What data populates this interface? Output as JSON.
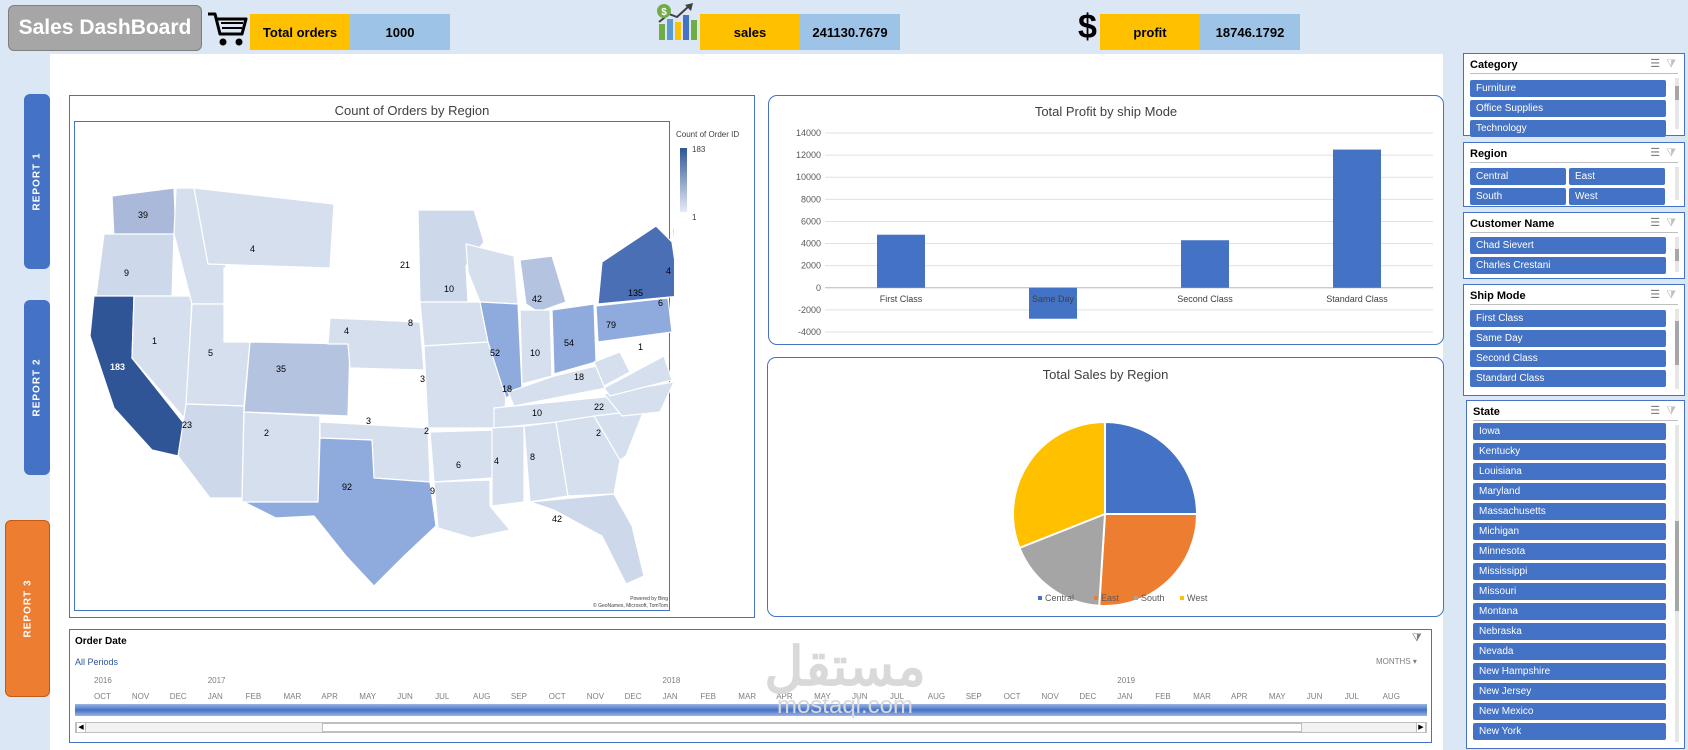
{
  "header": {
    "title": "Sales DashBoard",
    "kpis": [
      {
        "label": "Total  orders",
        "value": "1000",
        "icon": "cart-icon"
      },
      {
        "label": "sales",
        "value": "241130.7679",
        "icon": "sales-growth-icon"
      },
      {
        "label": "profit",
        "value": "18746.1792",
        "icon": "dollar-icon"
      }
    ]
  },
  "nav": [
    {
      "label": "REPORT 1",
      "color": "#4472c4"
    },
    {
      "label": "REPORT 2",
      "color": "#4472c4"
    },
    {
      "label": "REPORT 3",
      "color": "#ed7d31"
    }
  ],
  "map": {
    "title": "Count of Orders by Region",
    "legend_title": "Count of Order ID",
    "legend_max": "183",
    "legend_min": "1",
    "attribution_1": "Powered by Bing",
    "attribution_2": "© GeoNames, Microsoft, TomTom",
    "state_labels": [
      "39",
      "4",
      "9",
      "21",
      "10",
      "4",
      "135",
      "6",
      "42",
      "4",
      "79",
      "1",
      "8",
      "52",
      "10",
      "54",
      "1",
      "5",
      "35",
      "183",
      "3",
      "18",
      "18",
      "10",
      "22",
      "3",
      "2",
      "2",
      "23",
      "2",
      "92",
      "6",
      "4",
      "8",
      "9",
      "42"
    ]
  },
  "chart_data": [
    {
      "type": "bar",
      "title": "Total Profit by ship Mode",
      "categories": [
        "First Class",
        "Same Day",
        "Second Class",
        "Standard Class"
      ],
      "values": [
        4800,
        -2800,
        4300,
        12500
      ],
      "ylim": [
        -4000,
        14000
      ],
      "yticks": [
        "14000",
        "12000",
        "10000",
        "8000",
        "6000",
        "4000",
        "2000",
        "0",
        "-2000",
        "-4000"
      ],
      "color": "#4472c4",
      "grid": true,
      "legend": "none"
    },
    {
      "type": "pie",
      "title": "Total Sales by Region",
      "categories": [
        "Central",
        "East",
        "South",
        "West"
      ],
      "values": [
        25,
        26,
        18,
        31
      ],
      "colors": [
        "#4472c4",
        "#ed7d31",
        "#a5a5a5",
        "#ffc000"
      ],
      "legend": "bottom"
    }
  ],
  "slicers": {
    "category": {
      "title": "Category",
      "items": [
        "Furniture",
        "Office Supplies",
        "Technology"
      ]
    },
    "region": {
      "title": "Region",
      "items": [
        "Central",
        "East",
        "South",
        "West"
      ]
    },
    "customer": {
      "title": "Customer Name",
      "items": [
        "Chad Sievert",
        "Charles Crestani"
      ]
    },
    "shipmode": {
      "title": "Ship Mode",
      "items": [
        "First Class",
        "Same Day",
        "Second Class",
        "Standard Class"
      ]
    },
    "state": {
      "title": "State",
      "items": [
        "Iowa",
        "Kentucky",
        "Louisiana",
        "Maryland",
        "Massachusetts",
        "Michigan",
        "Minnesota",
        "Mississippi",
        "Missouri",
        "Montana",
        "Nebraska",
        "Nevada",
        "New Hampshire",
        "New Jersey",
        "New Mexico",
        "New York"
      ]
    }
  },
  "timeline": {
    "title": "Order Date",
    "period": "All Periods",
    "level": "MONTHS",
    "years": [
      "2016",
      "2017",
      "2018",
      "2019"
    ],
    "months": [
      "OCT",
      "NOV",
      "DEC",
      "JAN",
      "FEB",
      "MAR",
      "APR",
      "MAY",
      "JUN",
      "JUL",
      "AUG",
      "SEP",
      "OCT",
      "NOV",
      "DEC",
      "JAN",
      "FEB",
      "MAR",
      "APR",
      "MAY",
      "JUN",
      "JUL",
      "AUG",
      "SEP",
      "OCT",
      "NOV",
      "DEC",
      "JAN",
      "FEB",
      "MAR",
      "APR",
      "MAY",
      "JUN",
      "JUL",
      "AUG"
    ]
  },
  "watermark": {
    "arabic": "مستقل",
    "latin": "mostaql.com"
  }
}
